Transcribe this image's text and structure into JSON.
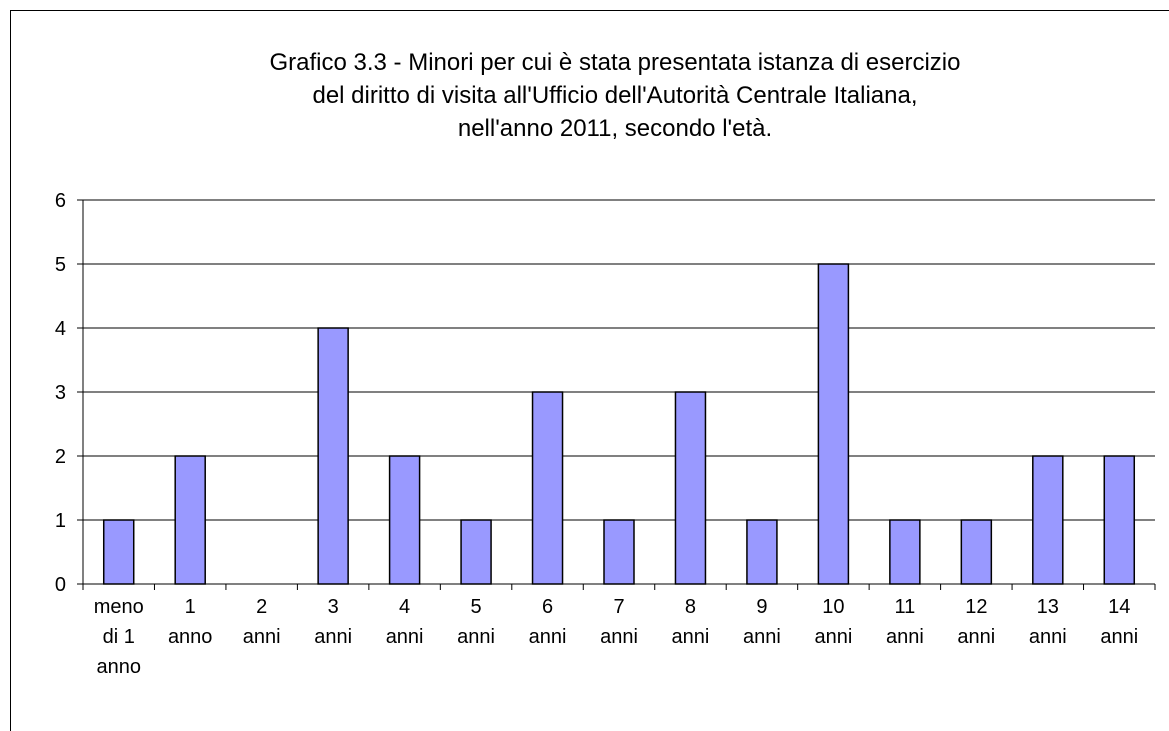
{
  "chart_data": {
    "type": "bar",
    "title": "Grafico 3.3 - Minori per cui è stata presentata istanza di esercizio\ndel diritto di visita all'Ufficio dell'Autorità Centrale Italiana,\nnell'anno 2011, secondo l'età.",
    "categories": [
      "meno\ndi 1\nanno",
      "1\nanno",
      "2\nanni",
      "3\nanni",
      "4\nanni",
      "5\nanni",
      "6\nanni",
      "7\nanni",
      "8\nanni",
      "9\nanni",
      "10\nanni",
      "11\nanni",
      "12\nanni",
      "13\nanni",
      "14\nanni"
    ],
    "values": [
      1,
      2,
      0,
      4,
      2,
      1,
      3,
      1,
      3,
      1,
      5,
      1,
      1,
      2,
      2
    ],
    "color": "#9999ff",
    "ylim": [
      0,
      6
    ],
    "yticks": [
      0,
      1,
      2,
      3,
      4,
      5,
      6
    ],
    "grid": true
  }
}
